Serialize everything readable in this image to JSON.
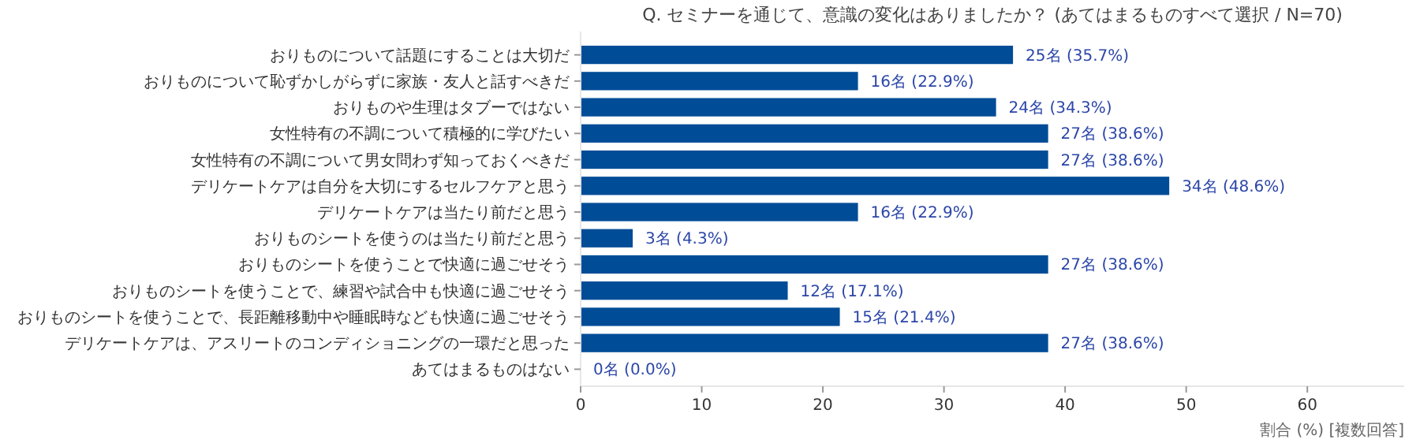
{
  "chart_data": {
    "type": "bar",
    "orientation": "horizontal",
    "title": "Q. セミナーを通じて、意識の変化はありましたか？ (あてはまるものすべて選択 / N=70)",
    "xlabel": "割合 (%) [複数回答]",
    "categories": [
      "おりものについて話題にすることは大切だ",
      "おりものについて恥ずかしがらずに家族・友人と話すべきだ",
      "おりものや生理はタブーではない",
      "女性特有の不調について積極的に学びたい",
      "女性特有の不調について男女問わず知っておくべきだ",
      "デリケートケアは自分を大切にするセルフケアと思う",
      "デリケートケアは当たり前だと思う",
      "おりものシートを使うのは当たり前だと思う",
      "おりものシートを使うことで快適に過ごせそう",
      "おりものシートを使うことで、練習や試合中も快適に過ごせそう",
      "おりものシートを使うことで、長距離移動中や睡眠時なども快適に過ごせそう",
      "デリケートケアは、アスリートのコンディショニングの一環だと思った",
      "あてはまるものはない"
    ],
    "values": [
      35.7,
      22.9,
      34.3,
      38.6,
      38.6,
      48.6,
      22.9,
      4.3,
      38.6,
      17.1,
      21.4,
      38.6,
      0.0
    ],
    "value_labels": [
      "25名 (35.7%)",
      "16名 (22.9%)",
      "24名 (34.3%)",
      "27名 (38.6%)",
      "27名 (38.6%)",
      "34名 (48.6%)",
      "16名 (22.9%)",
      "3名 (4.3%)",
      "27名 (38.6%)",
      "12名 (17.1%)",
      "15名 (21.4%)",
      "27名 (38.6%)",
      "0名 (0.0%)"
    ],
    "color": "#004c97",
    "xlim": [
      0,
      68
    ],
    "xticks": [
      0,
      10,
      20,
      30,
      40,
      50,
      60
    ],
    "grid": false
  }
}
